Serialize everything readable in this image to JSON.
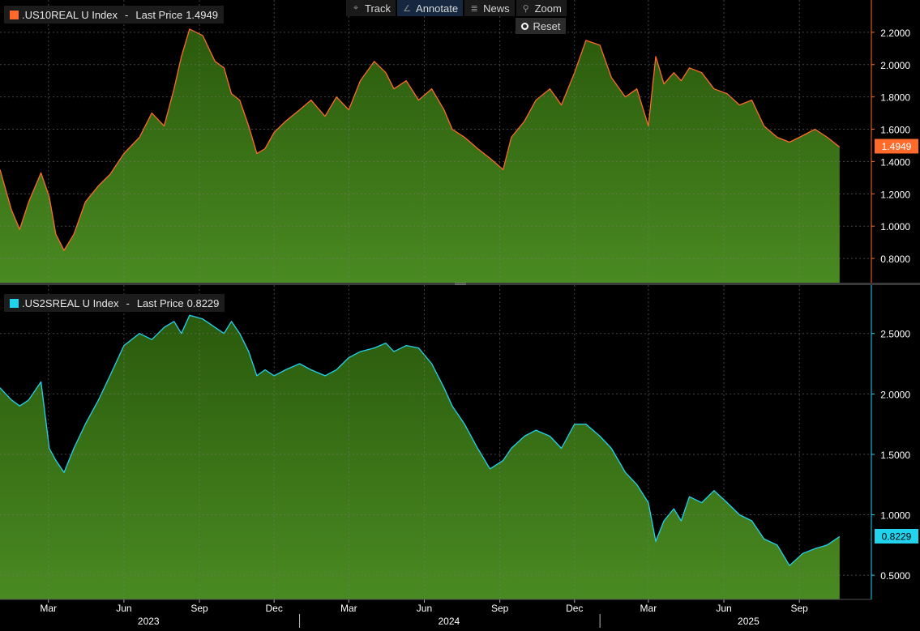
{
  "toolbar": {
    "track": {
      "label": "Track",
      "icon": "crosshair-icon"
    },
    "annotate": {
      "label": "Annotate",
      "icon": "pencil-icon"
    },
    "news": {
      "label": "News",
      "icon": "news-icon"
    },
    "zoom": {
      "label": "Zoom",
      "icon": "magnifier-icon"
    },
    "reset": {
      "label": "Reset",
      "icon": "reset-icon"
    }
  },
  "colors": {
    "background": "#000000",
    "fill_top": "#2a5a0c",
    "fill_bottom": "#4a8a22",
    "us10_line": "#ff6a2a",
    "us2_line": "#22d3ee",
    "axis_text": "#ffffff"
  },
  "chart_data": [
    {
      "type": "area",
      "legend": {
        "ticker": ".US10REAL U Index",
        "label": "Last Price",
        "value": "1.4949"
      },
      "last_value": 1.4949,
      "last_value_label": "1.4949",
      "ylim": [
        0.65,
        2.4
      ],
      "yticks": [
        0.8,
        1.0,
        1.2,
        1.4,
        1.6,
        1.8,
        2.0,
        2.2
      ],
      "ytick_labels": [
        "0.8000",
        "1.0000",
        "1.2000",
        "1.4000",
        "1.6000",
        "1.8000",
        "2.0000",
        "2.2000"
      ],
      "grid": true,
      "x": [
        "2023-01-01",
        "2023-01-15",
        "2023-01-25",
        "2023-02-05",
        "2023-02-20",
        "2023-03-02",
        "2023-03-10",
        "2023-03-20",
        "2023-04-01",
        "2023-04-15",
        "2023-05-01",
        "2023-05-15",
        "2023-06-01",
        "2023-06-20",
        "2023-07-05",
        "2023-07-20",
        "2023-08-01",
        "2023-08-10",
        "2023-08-20",
        "2023-09-05",
        "2023-09-20",
        "2023-10-01",
        "2023-10-10",
        "2023-10-20",
        "2023-10-31",
        "2023-11-10",
        "2023-11-20",
        "2023-12-01",
        "2023-12-15",
        "2024-01-01",
        "2024-01-15",
        "2024-02-01",
        "2024-02-15",
        "2024-03-01",
        "2024-03-15",
        "2024-04-01",
        "2024-04-15",
        "2024-04-25",
        "2024-05-10",
        "2024-05-25",
        "2024-06-10",
        "2024-06-25",
        "2024-07-05",
        "2024-07-20",
        "2024-08-05",
        "2024-08-20",
        "2024-09-05",
        "2024-09-15",
        "2024-10-01",
        "2024-10-15",
        "2024-11-01",
        "2024-11-15",
        "2024-12-01",
        "2024-12-15",
        "2025-01-01",
        "2025-01-15",
        "2025-02-01",
        "2025-02-15",
        "2025-03-01",
        "2025-03-10",
        "2025-03-20",
        "2025-04-01",
        "2025-04-10",
        "2025-04-20",
        "2025-05-05",
        "2025-05-20",
        "2025-06-05",
        "2025-06-20",
        "2025-07-05",
        "2025-07-20",
        "2025-08-05",
        "2025-08-20",
        "2025-09-05",
        "2025-09-20",
        "2025-10-05",
        "2025-10-20"
      ],
      "y": [
        1.35,
        1.1,
        0.98,
        1.15,
        1.33,
        1.18,
        0.95,
        0.85,
        0.95,
        1.15,
        1.25,
        1.32,
        1.45,
        1.55,
        1.7,
        1.62,
        1.85,
        2.05,
        2.22,
        2.18,
        2.02,
        1.98,
        1.82,
        1.78,
        1.62,
        1.45,
        1.48,
        1.58,
        1.65,
        1.72,
        1.78,
        1.68,
        1.8,
        1.72,
        1.9,
        2.02,
        1.95,
        1.85,
        1.9,
        1.78,
        1.85,
        1.72,
        1.6,
        1.55,
        1.48,
        1.42,
        1.35,
        1.55,
        1.65,
        1.78,
        1.85,
        1.75,
        1.95,
        2.15,
        2.12,
        1.92,
        1.8,
        1.85,
        1.62,
        2.05,
        1.88,
        1.95,
        1.9,
        1.98,
        1.95,
        1.85,
        1.82,
        1.75,
        1.78,
        1.62,
        1.55,
        1.52,
        1.56,
        1.6,
        1.55,
        1.49
      ]
    },
    {
      "type": "area",
      "legend": {
        "ticker": ".US2SREAL U Index",
        "label": "Last Price",
        "value": "0.8229"
      },
      "last_value": 0.8229,
      "last_value_label": "0.8229",
      "ylim": [
        0.3,
        2.9
      ],
      "yticks": [
        0.5,
        1.0,
        1.5,
        2.0,
        2.5
      ],
      "ytick_labels": [
        "0.5000",
        "1.0000",
        "1.5000",
        "2.0000",
        "2.5000"
      ],
      "grid": true,
      "x": [
        "2023-01-01",
        "2023-01-15",
        "2023-01-25",
        "2023-02-05",
        "2023-02-20",
        "2023-03-02",
        "2023-03-10",
        "2023-03-20",
        "2023-04-01",
        "2023-04-15",
        "2023-05-01",
        "2023-05-15",
        "2023-06-01",
        "2023-06-20",
        "2023-07-05",
        "2023-07-20",
        "2023-08-01",
        "2023-08-10",
        "2023-08-20",
        "2023-09-05",
        "2023-09-20",
        "2023-10-01",
        "2023-10-10",
        "2023-10-20",
        "2023-10-31",
        "2023-11-10",
        "2023-11-20",
        "2023-12-01",
        "2023-12-15",
        "2024-01-01",
        "2024-01-15",
        "2024-02-01",
        "2024-02-15",
        "2024-03-01",
        "2024-03-15",
        "2024-04-01",
        "2024-04-15",
        "2024-04-25",
        "2024-05-10",
        "2024-05-25",
        "2024-06-10",
        "2024-06-25",
        "2024-07-05",
        "2024-07-20",
        "2024-08-05",
        "2024-08-20",
        "2024-09-05",
        "2024-09-15",
        "2024-10-01",
        "2024-10-15",
        "2024-11-01",
        "2024-11-15",
        "2024-12-01",
        "2024-12-15",
        "2025-01-01",
        "2025-01-15",
        "2025-02-01",
        "2025-02-15",
        "2025-03-01",
        "2025-03-10",
        "2025-03-20",
        "2025-04-01",
        "2025-04-10",
        "2025-04-20",
        "2025-05-05",
        "2025-05-20",
        "2025-06-05",
        "2025-06-20",
        "2025-07-05",
        "2025-07-20",
        "2025-08-05",
        "2025-08-20",
        "2025-09-05",
        "2025-09-20",
        "2025-10-05",
        "2025-10-20"
      ],
      "y": [
        2.05,
        1.95,
        1.9,
        1.95,
        2.1,
        1.55,
        1.45,
        1.35,
        1.55,
        1.75,
        1.95,
        2.15,
        2.4,
        2.5,
        2.45,
        2.55,
        2.6,
        2.5,
        2.65,
        2.62,
        2.55,
        2.5,
        2.6,
        2.5,
        2.35,
        2.15,
        2.2,
        2.15,
        2.2,
        2.25,
        2.2,
        2.15,
        2.2,
        2.3,
        2.35,
        2.38,
        2.42,
        2.35,
        2.4,
        2.38,
        2.25,
        2.05,
        1.9,
        1.75,
        1.55,
        1.38,
        1.45,
        1.55,
        1.65,
        1.7,
        1.65,
        1.55,
        1.75,
        1.75,
        1.65,
        1.55,
        1.35,
        1.25,
        1.1,
        0.78,
        0.95,
        1.05,
        0.95,
        1.15,
        1.1,
        1.2,
        1.1,
        1.0,
        0.95,
        0.8,
        0.75,
        0.58,
        0.68,
        0.72,
        0.75,
        0.82
      ]
    }
  ],
  "x_axis": {
    "month_ticks": [
      {
        "date": "2023-03-01",
        "label": "Mar"
      },
      {
        "date": "2023-06-01",
        "label": "Jun"
      },
      {
        "date": "2023-09-01",
        "label": "Sep"
      },
      {
        "date": "2023-12-01",
        "label": "Dec"
      },
      {
        "date": "2024-03-01",
        "label": "Mar"
      },
      {
        "date": "2024-06-01",
        "label": "Jun"
      },
      {
        "date": "2024-09-01",
        "label": "Sep"
      },
      {
        "date": "2024-12-01",
        "label": "Dec"
      },
      {
        "date": "2025-03-01",
        "label": "Mar"
      },
      {
        "date": "2025-06-01",
        "label": "Jun"
      },
      {
        "date": "2025-09-01",
        "label": "Sep"
      }
    ],
    "year_labels": [
      {
        "date": "2023-07-01",
        "label": "2023"
      },
      {
        "date": "2024-07-01",
        "label": "2024"
      },
      {
        "date": "2025-07-01",
        "label": "2025"
      }
    ],
    "year_separators": [
      "2024-01-01",
      "2025-01-01"
    ],
    "range": [
      "2023-01-01",
      "2025-11-05"
    ]
  }
}
